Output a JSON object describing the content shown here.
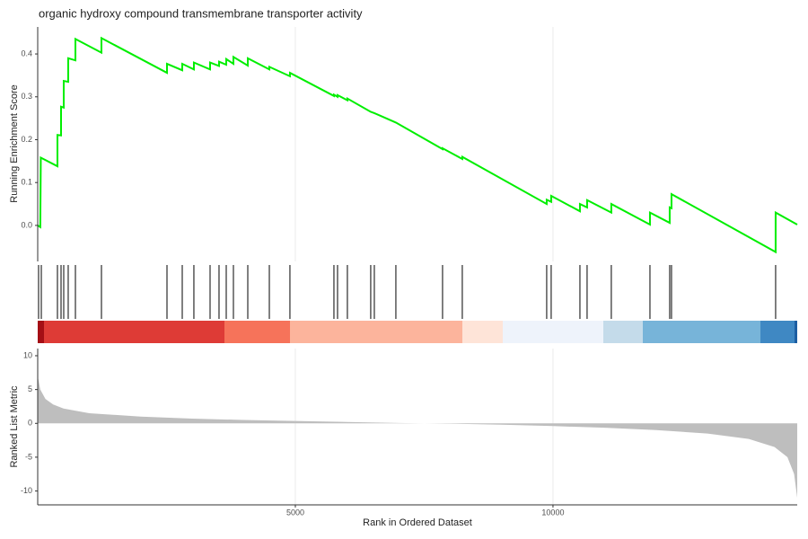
{
  "chart_data": [
    {
      "type": "line",
      "title": "organic hydroxy compound transmembrane transporter activity",
      "y_label": "Running Enrichment Score",
      "x": [
        0,
        50,
        60,
        383,
        383,
        453,
        453,
        505,
        505,
        592,
        592,
        732,
        732,
        1237,
        1237,
        2509,
        2509,
        2805,
        2805,
        3031,
        3031,
        3345,
        3345,
        3519,
        3519,
        3659,
        3659,
        3798,
        3798,
        4077,
        4077,
        4495,
        4495,
        4895,
        4895,
        5749,
        5749,
        5819,
        5819,
        6010,
        6010,
        6463,
        6533,
        6951,
        7857,
        7857,
        8240,
        8240,
        9878,
        9878,
        9965,
        9965,
        10523,
        10523,
        10662,
        10662,
        11132,
        11132,
        11882,
        11882,
        12265,
        12265,
        12300,
        12300,
        14321,
        14321,
        14740
      ],
      "values": [
        0,
        -0.004,
        0.158,
        0.138,
        0.211,
        0.21,
        0.277,
        0.275,
        0.337,
        0.335,
        0.39,
        0.385,
        0.435,
        0.403,
        0.437,
        0.356,
        0.377,
        0.362,
        0.377,
        0.364,
        0.38,
        0.364,
        0.38,
        0.372,
        0.382,
        0.375,
        0.388,
        0.377,
        0.393,
        0.373,
        0.39,
        0.364,
        0.37,
        0.348,
        0.356,
        0.302,
        0.305,
        0.3,
        0.304,
        0.292,
        0.296,
        0.265,
        0.262,
        0.24,
        0.178,
        0.18,
        0.155,
        0.16,
        0.05,
        0.06,
        0.055,
        0.069,
        0.033,
        0.05,
        0.042,
        0.059,
        0.03,
        0.05,
        0.002,
        0.03,
        0.006,
        0.042,
        0.04,
        0.073,
        -0.062,
        0.03,
        0.002
      ],
      "color": "#00ee00",
      "xlim": [
        0,
        14740
      ],
      "ylim": [
        -0.084,
        0.463
      ],
      "yticks": [
        {
          "value": 0,
          "label": "0.0"
        },
        0.1,
        0.2,
        0.3,
        0.4
      ],
      "grid": true
    },
    {
      "type": "rug",
      "x": [
        17,
        70,
        383,
        453,
        505,
        592,
        732,
        1237,
        2509,
        2805,
        3031,
        3345,
        3519,
        3659,
        3798,
        4077,
        4495,
        4895,
        5749,
        5819,
        6010,
        6463,
        6533,
        6951,
        7857,
        8240,
        9878,
        9965,
        10523,
        10662,
        11132,
        11882,
        12265,
        12300,
        14321
      ],
      "color": "#000000",
      "xlim": [
        0,
        14740
      ]
    },
    {
      "type": "area",
      "y_label": "Ranked List Metric",
      "x_label": "Rank in Ordered Dataset",
      "x": [
        0,
        50,
        150,
        300,
        500,
        1000,
        2000,
        3000,
        4000,
        5000,
        6000,
        7000,
        8000,
        9000,
        10000,
        11000,
        12000,
        13000,
        13800,
        14300,
        14550,
        14680,
        14740
      ],
      "values": [
        7.0,
        5.0,
        3.6,
        2.8,
        2.2,
        1.5,
        1.0,
        0.7,
        0.5,
        0.35,
        0.2,
        0.05,
        -0.05,
        -0.2,
        -0.4,
        -0.65,
        -1.0,
        -1.5,
        -2.3,
        -3.5,
        -5,
        -7.5,
        -11.0
      ],
      "color": "#bebebe",
      "xlim": [
        0,
        14740
      ],
      "ylim": [
        -12.05,
        11.06
      ],
      "yticks": [
        -10,
        -5,
        0,
        5,
        10
      ],
      "xticks": [
        5000,
        10000
      ],
      "grid": true
    }
  ]
}
